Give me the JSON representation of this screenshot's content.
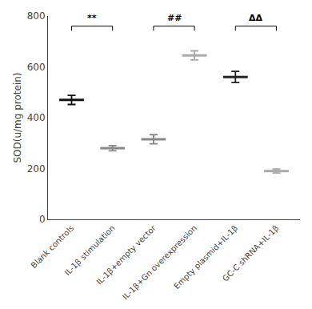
{
  "chart_data": {
    "type": "errorbar",
    "categories": [
      "Blank controls",
      "IL-1β stimulation",
      "IL-1β+empty vector",
      "IL-1β+Gn overexpression",
      "Empty plasmid+IL-1β",
      "GC-C shRNA+IL-1β"
    ],
    "values": [
      470,
      280,
      315,
      645,
      560,
      190
    ],
    "errors": [
      18,
      10,
      18,
      18,
      22,
      8
    ],
    "colors": [
      "#111111",
      "#888888",
      "#888888",
      "#aaaaaa",
      "#222222",
      "#aaaaaa"
    ],
    "marker": "line",
    "ylabel": "SOD(u/mg protein)",
    "ylim": [
      0,
      800
    ],
    "yticks": [
      0,
      200,
      400,
      600,
      800
    ],
    "grid": false,
    "significance_brackets": [
      {
        "x1": 0,
        "x2": 1,
        "y": 760,
        "label": "**"
      },
      {
        "x1": 2,
        "x2": 3,
        "y": 760,
        "label": "##"
      },
      {
        "x1": 4,
        "x2": 5,
        "y": 760,
        "label": "ΔΔ"
      }
    ]
  }
}
